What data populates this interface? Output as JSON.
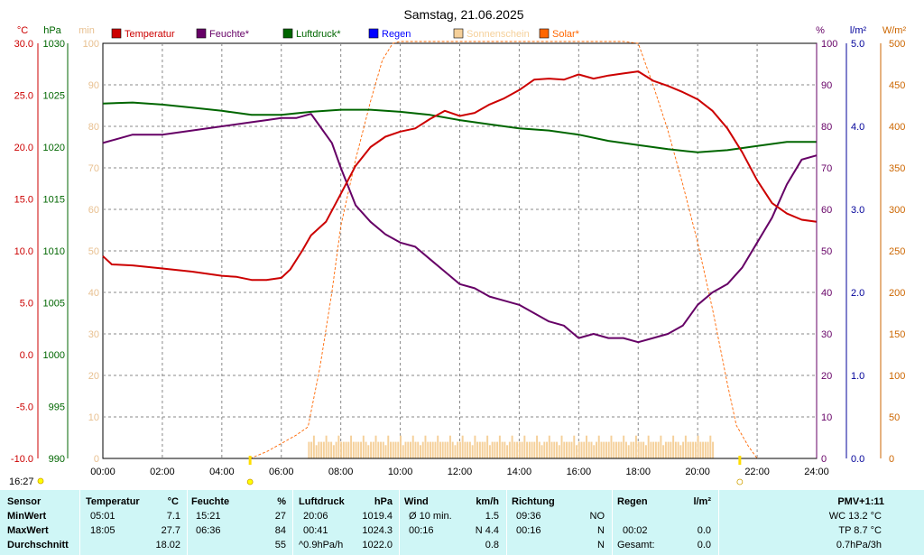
{
  "chart_data": {
    "type": "line",
    "title": "Samstag, 21.06.2025",
    "x_ticks": [
      "00:00",
      "02:00",
      "04:00",
      "06:00",
      "08:00",
      "10:00",
      "12:00",
      "14:00",
      "16:00",
      "18:00",
      "20:00",
      "22:00",
      "24:00"
    ],
    "axes": {
      "temperature": {
        "unit": "°C",
        "ticks": [
          "30.0",
          "25.0",
          "20.0",
          "15.0",
          "10.0",
          "5.0",
          "0.0",
          "-5.0",
          "-10.0"
        ],
        "range": [
          -10,
          30
        ],
        "color": "#cc0000"
      },
      "pressure": {
        "unit": "hPa",
        "ticks": [
          "1030",
          "1025",
          "1020",
          "1015",
          "1010",
          "1005",
          "1000",
          "995",
          "990"
        ],
        "range": [
          990,
          1030
        ],
        "color": "#006600"
      },
      "minutes": {
        "unit": "min",
        "ticks": [
          "100",
          "90",
          "80",
          "70",
          "60",
          "50",
          "40",
          "30",
          "20",
          "10",
          "0"
        ],
        "range": [
          0,
          100
        ],
        "color": "#e8c090"
      },
      "humidity": {
        "unit": "%",
        "ticks": [
          "100",
          "90",
          "80",
          "70",
          "60",
          "50",
          "40",
          "30",
          "20",
          "10",
          "0"
        ],
        "range": [
          0,
          100
        ],
        "color": "#660066"
      },
      "rain": {
        "unit": "l/m²",
        "ticks": [
          "5.0",
          "4.0",
          "3.0",
          "2.0",
          "1.0",
          "0.0"
        ],
        "range": [
          0,
          5
        ],
        "color": "#000099"
      },
      "solar": {
        "unit": "W/m²",
        "ticks": [
          "500",
          "450",
          "400",
          "350",
          "300",
          "250",
          "200",
          "150",
          "100",
          "50",
          "0"
        ],
        "range": [
          0,
          500
        ],
        "color": "#cc6600"
      }
    },
    "legend": [
      {
        "name": "Temperatur",
        "color": "#cc0000"
      },
      {
        "name": "Feuchte*",
        "color": "#660066"
      },
      {
        "name": "Luftdruck*",
        "color": "#006600"
      },
      {
        "name": "Regen",
        "color": "#0000ff"
      },
      {
        "name": "Sonnenschein",
        "color": "#f5d09a"
      },
      {
        "name": "Solar*",
        "color": "#ff6600"
      }
    ],
    "series": [
      {
        "name": "Temperatur",
        "axis": "temperature",
        "color": "#cc0000",
        "x": [
          0,
          0.3,
          1,
          2,
          3,
          4,
          4.5,
          5,
          5.5,
          6,
          6.3,
          6.7,
          7,
          7.5,
          8,
          8.5,
          9,
          9.5,
          10,
          10.5,
          11,
          11.5,
          12,
          12.5,
          13,
          13.5,
          14,
          14.5,
          15,
          15.5,
          16,
          16.5,
          17,
          17.5,
          18,
          18.5,
          19,
          19.5,
          20,
          20.5,
          21,
          21.5,
          22,
          22.5,
          23,
          23.5,
          24
        ],
        "y": [
          9.5,
          8.7,
          8.6,
          8.3,
          8.0,
          7.6,
          7.5,
          7.2,
          7.2,
          7.4,
          8.2,
          10.0,
          11.5,
          12.8,
          15.5,
          18.2,
          20.0,
          21.0,
          21.5,
          21.8,
          22.7,
          23.5,
          23.0,
          23.3,
          24.1,
          24.7,
          25.5,
          26.5,
          26.6,
          26.5,
          27.0,
          26.6,
          26.9,
          27.1,
          27.3,
          26.4,
          25.9,
          25.3,
          24.6,
          23.5,
          21.8,
          19.5,
          16.8,
          14.6,
          13.6,
          13.0,
          12.8
        ]
      },
      {
        "name": "Feuchte*",
        "axis": "humidity",
        "color": "#660066",
        "x": [
          0,
          0.5,
          1,
          2,
          3,
          4,
          5,
          5.5,
          6,
          6.5,
          7,
          7.3,
          7.7,
          8,
          8.5,
          9,
          9.5,
          10,
          10.5,
          11,
          11.5,
          12,
          12.5,
          13,
          13.5,
          14,
          14.5,
          15,
          15.5,
          16,
          16.5,
          17,
          17.5,
          18,
          18.5,
          19,
          19.5,
          20,
          20.5,
          21,
          21.5,
          22,
          22.5,
          23,
          23.5,
          24
        ],
        "y": [
          76,
          77,
          78,
          78,
          79,
          80,
          81,
          81.5,
          82,
          82,
          83,
          80,
          76,
          70,
          61,
          57,
          54,
          52,
          51,
          48,
          45,
          42,
          41,
          39,
          38,
          37,
          35,
          33,
          32,
          29,
          30,
          29,
          29,
          28,
          29,
          30,
          32,
          37,
          40,
          42,
          46,
          52,
          58,
          66,
          72,
          73
        ]
      },
      {
        "name": "Luftdruck*",
        "axis": "pressure",
        "color": "#006600",
        "x": [
          0,
          1,
          2,
          3,
          4,
          5,
          6,
          7,
          8,
          9,
          10,
          11,
          12,
          13,
          14,
          15,
          16,
          17,
          18,
          19,
          20,
          21,
          22,
          23,
          24
        ],
        "y": [
          1024.2,
          1024.3,
          1024.1,
          1023.8,
          1023.5,
          1023.1,
          1023.1,
          1023.4,
          1023.6,
          1023.6,
          1023.4,
          1023.1,
          1022.6,
          1022.2,
          1021.8,
          1021.6,
          1021.2,
          1020.6,
          1020.2,
          1019.8,
          1019.5,
          1019.7,
          1020.1,
          1020.5,
          1020.5
        ]
      },
      {
        "name": "Solar*",
        "axis": "solar",
        "color": "#ff6600",
        "style": "dashed",
        "x": [
          4.95,
          5.5,
          6,
          6.5,
          6.9,
          7.3,
          7.7,
          8,
          8.5,
          9,
          9.4,
          9.75,
          10,
          10.5,
          11,
          11.5,
          12,
          13,
          14,
          15,
          16,
          17,
          17.5,
          18,
          18.5,
          19,
          19.5,
          20,
          20.5,
          21,
          21.3,
          21.7,
          22
        ],
        "y": [
          0,
          8,
          18,
          28,
          38,
          110,
          200,
          280,
          360,
          430,
          480,
          500,
          520,
          520,
          520,
          520,
          520,
          520,
          520,
          520,
          520,
          520,
          520,
          500,
          450,
          395,
          330,
          260,
          180,
          90,
          40,
          15,
          0
        ]
      }
    ],
    "sunshine": {
      "start": 6.9,
      "end": 20.5,
      "typical": 4
    },
    "sun_markers": {
      "sunrise": "04:57",
      "sunset": "21:25"
    }
  },
  "corner_time": "16:27",
  "stats": {
    "headers": {
      "sensor": "Sensor",
      "temp": "Temperatur",
      "temp_unit": "°C",
      "hum": "Feuchte",
      "hum_unit": "%",
      "press": "Luftdruck",
      "press_unit": "hPa",
      "wind": "Wind",
      "wind_unit": "km/h",
      "dir": "Richtung",
      "rain": "Regen",
      "rain_unit": "l/m²",
      "pmv": "PMV+1:11"
    },
    "rows": [
      {
        "label": "MinWert",
        "temp_time": "05:01",
        "temp_val": "7.1",
        "hum_time": "15:21",
        "hum_val": "27",
        "press_time": "20:06",
        "press_val": "1019.4",
        "wind_time": "Ø 10 min.",
        "wind_val": "1.5",
        "dir_time": "09:36",
        "dir_val": "NO",
        "rain_time": "",
        "rain_val": "",
        "pmv": "WC 13.2 °C"
      },
      {
        "label": "MaxWert",
        "temp_time": "18:05",
        "temp_val": "27.7",
        "hum_time": "06:36",
        "hum_val": "84",
        "press_time": "00:41",
        "press_val": "1024.3",
        "wind_time": "00:16",
        "wind_val": "N 4.4",
        "dir_time": "00:16",
        "dir_val": "N",
        "rain_time": "00:02",
        "rain_val": "0.0",
        "pmv": "TP 8.7 °C"
      },
      {
        "label": "Durchschnitt",
        "temp_time": "",
        "temp_val": "18.02",
        "hum_time": "",
        "hum_val": "55",
        "press_time": "^0.9hPa/h",
        "press_val": "1022.0",
        "wind_time": "",
        "wind_val": "0.8",
        "dir_time": "",
        "dir_val": "N",
        "rain_time": "Gesamt:",
        "rain_val": "0.0",
        "pmv": "0.7hPa/3h"
      }
    ]
  }
}
